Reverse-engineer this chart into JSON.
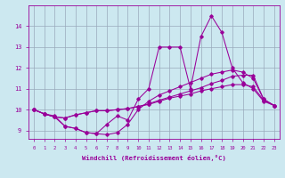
{
  "xlabel": "Windchill (Refroidissement éolien,°C)",
  "background_color": "#cce8f0",
  "line_color": "#990099",
  "grid_color": "#99aabb",
  "x_values": [
    0,
    1,
    2,
    3,
    4,
    5,
    6,
    7,
    8,
    9,
    10,
    11,
    12,
    13,
    14,
    15,
    16,
    17,
    18,
    19,
    20,
    21,
    22,
    23
  ],
  "line1": [
    10.0,
    9.8,
    9.7,
    9.2,
    9.1,
    8.9,
    8.85,
    9.3,
    9.7,
    9.5,
    10.5,
    11.0,
    13.0,
    13.0,
    13.0,
    11.0,
    13.5,
    14.5,
    13.7,
    12.0,
    11.3,
    11.0,
    10.4,
    10.2
  ],
  "line2": [
    10.0,
    9.8,
    9.65,
    9.2,
    9.1,
    8.9,
    8.85,
    8.8,
    8.9,
    9.3,
    10.0,
    10.4,
    10.7,
    10.9,
    11.1,
    11.3,
    11.5,
    11.7,
    11.8,
    11.9,
    11.8,
    11.5,
    10.5,
    10.2
  ],
  "line3": [
    10.0,
    9.8,
    9.65,
    9.6,
    9.75,
    9.85,
    9.95,
    9.95,
    10.0,
    10.05,
    10.15,
    10.25,
    10.4,
    10.55,
    10.65,
    10.75,
    10.9,
    11.0,
    11.1,
    11.2,
    11.2,
    11.1,
    10.45,
    10.2
  ],
  "line4": [
    10.0,
    9.8,
    9.65,
    9.6,
    9.75,
    9.85,
    9.95,
    9.95,
    10.0,
    10.05,
    10.15,
    10.28,
    10.45,
    10.6,
    10.75,
    10.9,
    11.05,
    11.25,
    11.4,
    11.6,
    11.65,
    11.65,
    10.5,
    10.2
  ],
  "ylim": [
    8.6,
    15.0
  ],
  "yticks": [
    9,
    10,
    11,
    12,
    13,
    14
  ],
  "xticks": [
    0,
    1,
    2,
    3,
    4,
    5,
    6,
    7,
    8,
    9,
    10,
    11,
    12,
    13,
    14,
    15,
    16,
    17,
    18,
    19,
    20,
    21,
    22,
    23
  ]
}
